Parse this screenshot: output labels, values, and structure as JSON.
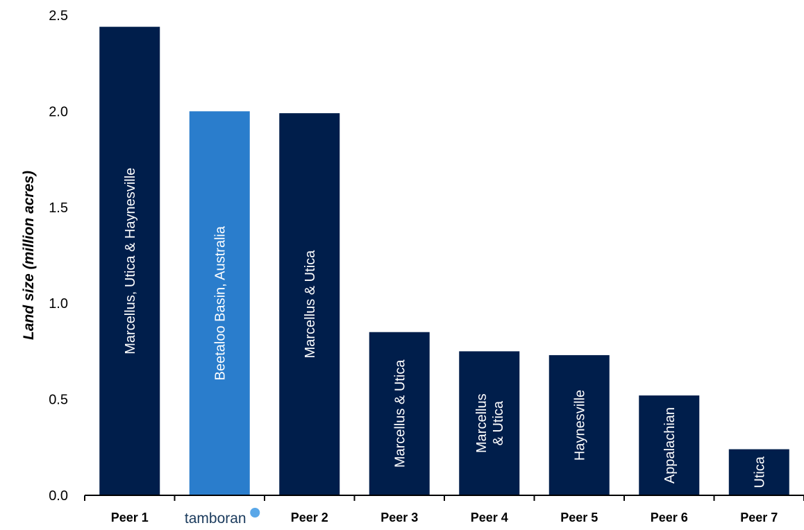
{
  "chart_data": {
    "type": "bar",
    "categories": [
      "Peer 1",
      "tamboran",
      "Peer 2",
      "Peer 3",
      "Peer 4",
      "Peer 5",
      "Peer 6",
      "Peer 7"
    ],
    "values": [
      2.44,
      2.0,
      1.99,
      0.85,
      0.75,
      0.73,
      0.52,
      0.24
    ],
    "bar_labels": [
      [
        "Marcellus, Utica & Haynesville"
      ],
      [
        "Beetaloo Basin, Australia"
      ],
      [
        "Marcellus & Utica"
      ],
      [
        "Marcellus & Utica"
      ],
      [
        "Marcellus",
        "& Utica"
      ],
      [
        "Haynesville"
      ],
      [
        "Appalachian"
      ],
      [
        "Utica"
      ]
    ],
    "ylabel": "Land size (million acres)",
    "ylim": [
      0,
      2.5
    ],
    "yticks": [
      "0.0",
      "0.5",
      "1.0",
      "1.5",
      "2.0",
      "2.5"
    ],
    "ytick_values": [
      0,
      0.5,
      1.0,
      1.5,
      2.0,
      2.5
    ],
    "grid": false,
    "highlight_index": 1,
    "colors": {
      "default": "#001e4b",
      "highlight": "#2a7dcc",
      "logo_dot": "#5aa7e8",
      "logo_text": "#1a3a5c"
    }
  }
}
